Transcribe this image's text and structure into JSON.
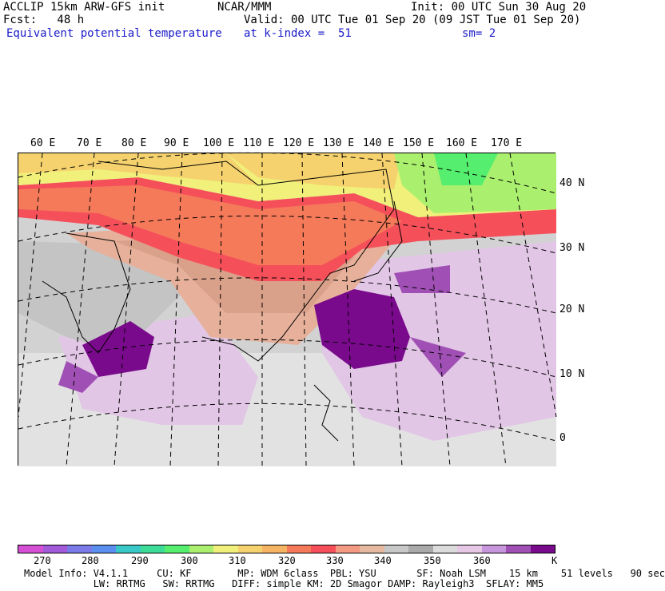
{
  "header": {
    "model": "ACCLIP 15km ARW-GFS init",
    "org": "NCAR/MMM",
    "init": "Init: 00 UTC Sun 30 Aug 20",
    "fcst": "Fcst:   48 h",
    "valid": "Valid: 00 UTC Tue 01 Sep 20 (09 JST Tue 01 Sep 20)",
    "field": "Equivalent potential temperature",
    "level": "at k-index =  51",
    "smooth": "sm= 2"
  },
  "lon_labels": [
    "60 E",
    "70 E",
    "80 E",
    "90 E",
    "100 E",
    "110 E",
    "120 E",
    "130 E",
    "140 E",
    "150 E",
    "160 E",
    "170 E"
  ],
  "lat_labels": [
    "40 N",
    "30 N",
    "20 N",
    "10 N",
    "0"
  ],
  "colorbar": {
    "colors": [
      "#d44fd4",
      "#a25ad8",
      "#7a7ae8",
      "#5a8ff0",
      "#38c8c8",
      "#3cdc96",
      "#55ee6e",
      "#aaf06e",
      "#f0f07a",
      "#f5d26e",
      "#f5b464",
      "#f57a5a",
      "#f5505a",
      "#f59a82",
      "#e6b9a0",
      "#c8c8c8",
      "#aaaaaa",
      "#dcdcdc",
      "#e6c8e6",
      "#c896dc",
      "#a050b4",
      "#7a0a8c"
    ],
    "labels": [
      "270",
      "280",
      "290",
      "300",
      "310",
      "320",
      "330",
      "340",
      "350",
      "360",
      "K"
    ]
  },
  "footer": {
    "line1": "Model Info: V4.1.1     CU: KF        MP: WDM 6class  PBL: YSU       SF: Noah LSM    15 km    51 levels   90 sec",
    "line2": "            LW: RRTMG   SW: RRTMG   DIFF: simple KM: 2D Smagor DAMP: Rayleigh3  SFLAY: MM5"
  }
}
